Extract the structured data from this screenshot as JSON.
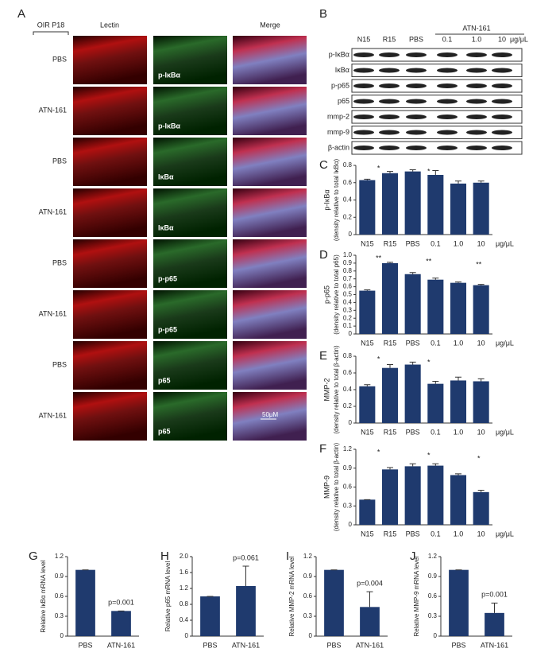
{
  "panel_a": {
    "label": "A",
    "column_headers": [
      "OIR P18",
      "Lectin",
      "Merge"
    ],
    "rows": [
      {
        "group": "PBS",
        "stain": "p-IκBα"
      },
      {
        "group": "ATN-161",
        "stain": "p-IκBα"
      },
      {
        "group": "PBS",
        "stain": "IκBα"
      },
      {
        "group": "ATN-161",
        "stain": "IκBα"
      },
      {
        "group": "PBS",
        "stain": "p-p65"
      },
      {
        "group": "ATN-161",
        "stain": "p-p65"
      },
      {
        "group": "PBS",
        "stain": "p65"
      },
      {
        "group": "ATN-161",
        "stain": "p65"
      }
    ],
    "scale_bar": "50μM"
  },
  "panel_b": {
    "label": "B",
    "lanes": [
      "N15",
      "R15",
      "PBS",
      "0.1",
      "1.0",
      "10"
    ],
    "unit": "μg/μL",
    "treatment": "ATN-161",
    "rows": [
      "p-IκBα",
      "IκBα",
      "p-p65",
      "p65",
      "mmp-2",
      "mmp-9",
      "β-actin"
    ]
  },
  "chart_data": [
    {
      "type": "bar",
      "label": "C",
      "ylabel": "p-IκBα",
      "ylabel2": "(density relative to total IκBα)",
      "unit": "μg/μL",
      "categories": [
        "N15",
        "R15",
        "PBS",
        "0.1",
        "1.0",
        "10"
      ],
      "values": [
        0.63,
        0.71,
        0.73,
        0.69,
        0.59,
        0.6
      ],
      "errors": [
        0.01,
        0.02,
        0.02,
        0.05,
        0.03,
        0.02
      ],
      "color": "#1f3a6e",
      "ylim": [
        0,
        0.8
      ],
      "yticks": [
        0,
        0.2,
        0.4,
        0.6,
        0.8
      ],
      "annotations": [
        "*",
        "*"
      ]
    },
    {
      "type": "bar",
      "label": "D",
      "ylabel": "p-p65",
      "ylabel2": "(density relative to total p65)",
      "unit": "μg/μL",
      "categories": [
        "N15",
        "R15",
        "PBS",
        "0.1",
        "1.0",
        "10"
      ],
      "values": [
        0.55,
        0.9,
        0.76,
        0.69,
        0.65,
        0.62
      ],
      "errors": [
        0.01,
        0.01,
        0.02,
        0.02,
        0.01,
        0.01
      ],
      "color": "#1f3a6e",
      "ylim": [
        0,
        1
      ],
      "yticks": [
        0,
        0.1,
        0.2,
        0.3,
        0.4,
        0.5,
        0.6,
        0.7,
        0.8,
        0.9,
        {
          "value": 1,
          "label": "1.0"
        }
      ],
      "annotations": [
        "**",
        "**",
        "**"
      ]
    },
    {
      "type": "bar",
      "label": "E",
      "ylabel": "MMP-2",
      "ylabel2": "(density relative to total β-actin)",
      "unit": "μg/μL",
      "categories": [
        "N15",
        "R15",
        "PBS",
        "0.1",
        "1.0",
        "10"
      ],
      "values": [
        0.44,
        0.66,
        0.7,
        0.47,
        0.51,
        0.5
      ],
      "errors": [
        0.02,
        0.04,
        0.03,
        0.03,
        0.04,
        0.03
      ],
      "color": "#1f3a6e",
      "ylim": [
        0,
        0.8
      ],
      "yticks": [
        0,
        0.2,
        0.4,
        0.6,
        0.8
      ],
      "annotations": [
        "*",
        "*"
      ]
    },
    {
      "type": "bar",
      "label": "F",
      "ylabel": "MMP-9",
      "ylabel2": "(density relative to total β-actin)",
      "unit": "μg/μL",
      "categories": [
        "N15",
        "R15",
        "PBS",
        "0.1",
        "1.0",
        "10"
      ],
      "values": [
        0.4,
        0.88,
        0.93,
        0.94,
        0.79,
        0.52
      ],
      "errors": [
        0,
        0.03,
        0.04,
        0.03,
        0.02,
        0.03
      ],
      "color": "#1f3a6e",
      "ylim": [
        0,
        1.2
      ],
      "yticks": [
        0,
        0.3,
        0.6,
        0.9,
        1.2
      ],
      "annotations": [
        "*",
        "*",
        "*"
      ]
    },
    {
      "type": "bar",
      "label": "G",
      "ylabel": "Relative IκBα mRNA level",
      "categories": [
        "PBS",
        "ATN-161"
      ],
      "values": [
        1,
        0.38
      ],
      "errors": [
        0,
        0
      ],
      "color": "#1f3a6e",
      "ylim": [
        0,
        1.2
      ],
      "yticks": [
        0,
        0.3,
        0.6,
        0.9,
        1.2
      ],
      "annotations": [
        "p=0.001"
      ]
    },
    {
      "type": "bar",
      "label": "H",
      "ylabel": "Relative p65 mRNA level",
      "categories": [
        "PBS",
        "ATN-161"
      ],
      "values": [
        1,
        1.26
      ],
      "errors": [
        0,
        0.5
      ],
      "color": "#1f3a6e",
      "ylim": [
        0,
        2
      ],
      "yticks": [
        0,
        0.4,
        0.8,
        1.2,
        1.6,
        {
          "value": 2,
          "label": "2.0"
        }
      ],
      "annotations": [
        "p=0.061"
      ]
    },
    {
      "type": "bar",
      "label": "I",
      "ylabel": "Relative MMP-2 mRNA level",
      "categories": [
        "PBS",
        "ATN-161"
      ],
      "values": [
        1,
        0.44
      ],
      "errors": [
        0,
        0.23
      ],
      "color": "#1f3a6e",
      "ylim": [
        0,
        1.2
      ],
      "yticks": [
        0,
        0.3,
        0.6,
        0.9,
        1.2
      ],
      "annotations": [
        "p=0.004"
      ]
    },
    {
      "type": "bar",
      "label": "J",
      "ylabel": "Relative MMP-9 mRNA level",
      "categories": [
        "PBS",
        "ATN-161"
      ],
      "values": [
        1,
        0.35
      ],
      "errors": [
        0,
        0.15
      ],
      "color": "#1f3a6e",
      "ylim": [
        0,
        1.2
      ],
      "yticks": [
        0,
        0.3,
        0.6,
        0.9,
        1.2
      ],
      "annotations": [
        "p=0.001"
      ]
    }
  ]
}
